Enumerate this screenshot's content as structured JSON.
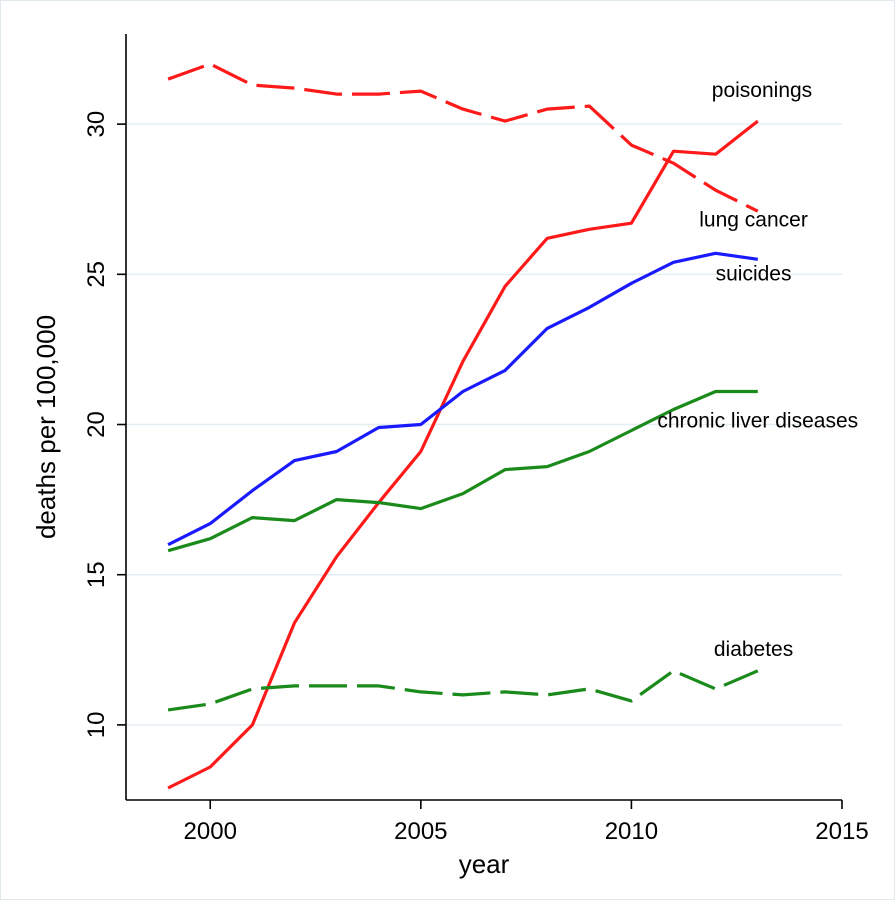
{
  "chart_data": {
    "type": "line",
    "xlabel": "year",
    "ylabel": "deaths per 100,000",
    "xlim": [
      1998,
      2015
    ],
    "ylim": [
      7.5,
      33
    ],
    "x_ticks": [
      2000,
      2005,
      2010,
      2015
    ],
    "y_ticks": [
      10,
      15,
      20,
      25,
      30
    ],
    "grid": "horizontal",
    "x": [
      1999,
      2000,
      2001,
      2002,
      2003,
      2004,
      2005,
      2006,
      2007,
      2008,
      2009,
      2010,
      2011,
      2012,
      2013
    ],
    "series": [
      {
        "name": "poisonings",
        "color": "#ff1a1a",
        "dash": "solid",
        "values": [
          7.9,
          8.6,
          10.0,
          13.4,
          15.6,
          17.4,
          19.1,
          22.1,
          24.6,
          26.2,
          26.5,
          26.7,
          29.1,
          29.0,
          30.1
        ]
      },
      {
        "name": "lung cancer",
        "color": "#ff1a1a",
        "dash": "dashed",
        "values": [
          31.5,
          32.0,
          31.3,
          31.2,
          31.0,
          31.0,
          31.1,
          30.5,
          30.1,
          30.5,
          30.6,
          29.3,
          28.7,
          27.8,
          27.1
        ]
      },
      {
        "name": "suicides",
        "color": "#1a1aff",
        "dash": "solid",
        "values": [
          16.0,
          16.7,
          17.8,
          18.8,
          19.1,
          19.9,
          20.0,
          21.1,
          21.8,
          23.2,
          23.9,
          24.7,
          25.4,
          25.7,
          25.5
        ]
      },
      {
        "name": "chronic liver diseases",
        "color": "#1a8a1a",
        "dash": "solid",
        "values": [
          15.8,
          16.2,
          16.9,
          16.8,
          17.5,
          17.4,
          17.2,
          17.7,
          18.5,
          18.6,
          19.1,
          19.8,
          20.5,
          21.1,
          21.1
        ]
      },
      {
        "name": "diabetes",
        "color": "#1a8a1a",
        "dash": "dashed",
        "values": [
          10.5,
          10.7,
          11.2,
          11.3,
          11.3,
          11.3,
          11.1,
          11.0,
          11.1,
          11.0,
          11.2,
          10.8,
          11.8,
          11.2,
          11.8
        ]
      }
    ],
    "annotations": [
      {
        "text": "poisonings",
        "x": 2013.1,
        "y": 30.9
      },
      {
        "text": "lung cancer",
        "x": 2012.9,
        "y": 26.6
      },
      {
        "text": "suicides",
        "x": 2012.9,
        "y": 24.8
      },
      {
        "text": "chronic liver diseases",
        "x": 2013.0,
        "y": 19.9
      },
      {
        "text": "diabetes",
        "x": 2012.9,
        "y": 12.3
      }
    ]
  }
}
